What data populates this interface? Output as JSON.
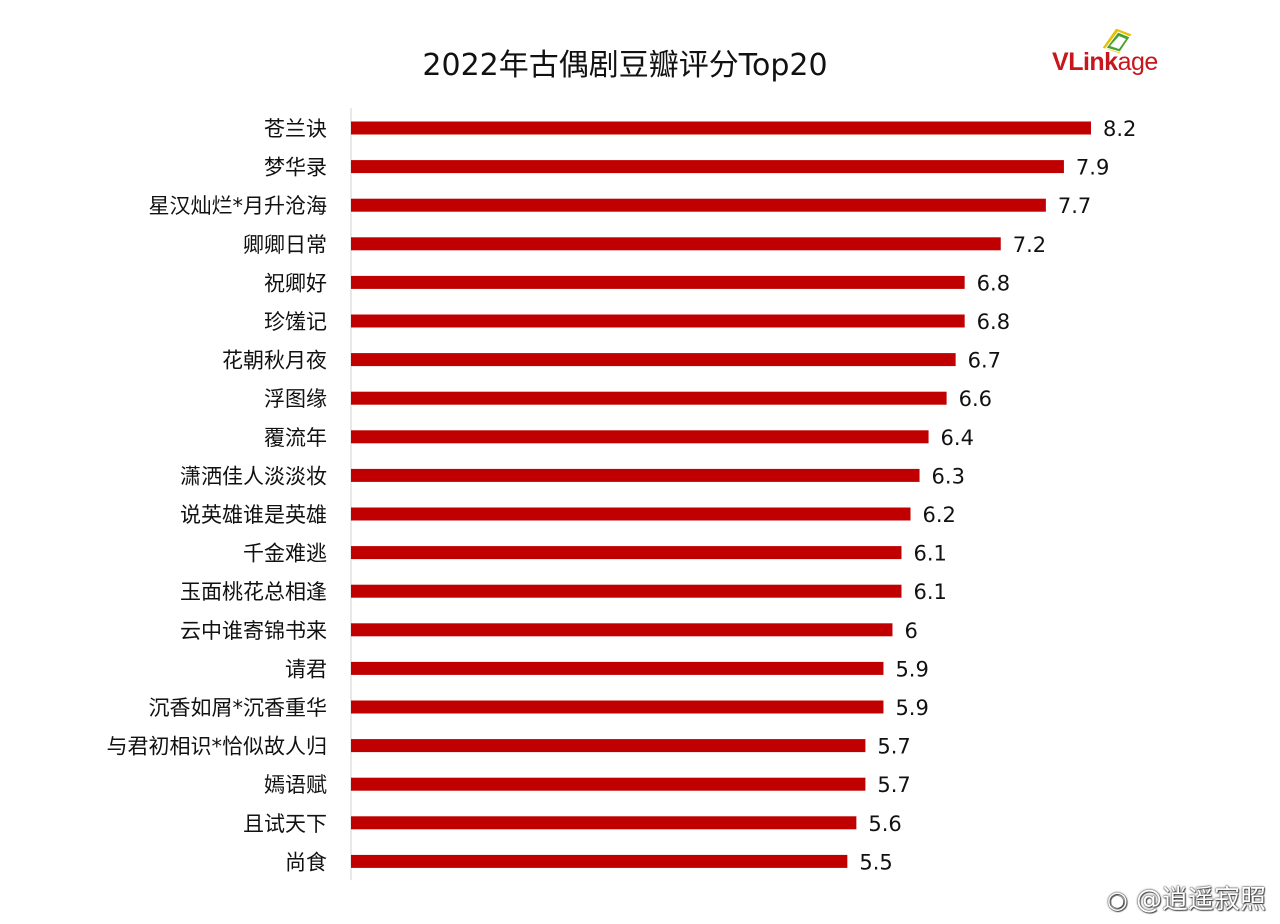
{
  "chart_data": {
    "type": "bar",
    "orientation": "horizontal",
    "title": "2022年古偶剧豆瓣评分Top20",
    "categories": [
      "苍兰诀",
      "梦华录",
      "星汉灿烂*月升沧海",
      "卿卿日常",
      "祝卿好",
      "珍馐记",
      "花朝秋月夜",
      "浮图缘",
      "覆流年",
      "潇洒佳人淡淡妆",
      "说英雄谁是英雄",
      "千金难逃",
      "玉面桃花总相逢",
      "云中谁寄锦书来",
      "请君",
      "沉香如屑*沉香重华",
      "与君初相识*恰似故人归",
      "嫣语赋",
      "且试天下",
      "尚食"
    ],
    "values": [
      8.2,
      7.9,
      7.7,
      7.2,
      6.8,
      6.8,
      6.7,
      6.6,
      6.4,
      6.3,
      6.2,
      6.1,
      6.1,
      6,
      5.9,
      5.9,
      5.7,
      5.7,
      5.6,
      5.5
    ],
    "value_labels": [
      "8.2",
      "7.9",
      "7.7",
      "7.2",
      "6.8",
      "6.8",
      "6.7",
      "6.6",
      "6.4",
      "6.3",
      "6.2",
      "6.1",
      "6.1",
      "6",
      "5.9",
      "5.9",
      "5.7",
      "5.7",
      "5.6",
      "5.5"
    ],
    "xlim": [
      0,
      8.2
    ],
    "xlabel": "",
    "ylabel": "",
    "grid": false,
    "bar_color": "#c00000"
  },
  "logo": {
    "v": "V",
    "link": "Link",
    "age": "age"
  },
  "watermark": {
    "text": "@逍遥寂照"
  }
}
